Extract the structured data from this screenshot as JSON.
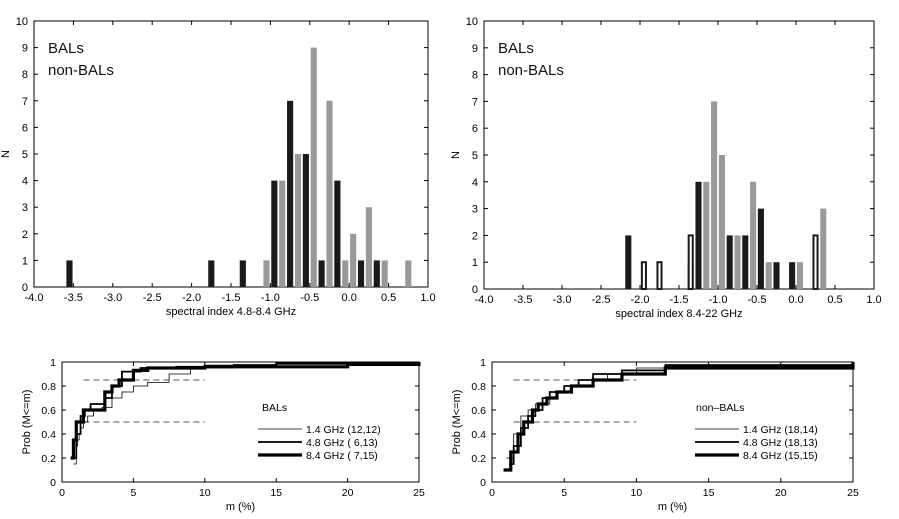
{
  "chart_data": [
    {
      "type": "bar",
      "xlabel": "spectral index 4.8-8.4 GHz",
      "ylabel": "N",
      "xlim": [
        -4.0,
        1.0
      ],
      "ylim": [
        0,
        10
      ],
      "xticks": [
        "-4.0",
        "-3.5",
        "-3.0",
        "-2.5",
        "-2.0",
        "-1.5",
        "-1.0",
        "-0.5",
        "0.0",
        "0.5",
        "1.0"
      ],
      "yticks": [
        "0",
        "1",
        "2",
        "3",
        "4",
        "5",
        "6",
        "7",
        "8",
        "9",
        "10"
      ],
      "grid": false,
      "legend_position": "top-left",
      "series": [
        {
          "name": "BALs",
          "color": "#1a1a1a",
          "x": [
            -3.55,
            -1.75,
            -1.35,
            -0.95,
            -0.75,
            -0.55,
            -0.35,
            -0.15,
            0.15,
            0.35
          ],
          "values": [
            1,
            1,
            1,
            4,
            7,
            5,
            1,
            4,
            1,
            1
          ]
        },
        {
          "name": "non-BALs",
          "color": "#999999",
          "x": [
            -1.05,
            -0.85,
            -0.65,
            -0.45,
            -0.25,
            -0.05,
            0.05,
            0.25,
            0.45,
            0.75
          ],
          "values": [
            1,
            4,
            5,
            9,
            7,
            1,
            2,
            3,
            1,
            1
          ]
        }
      ]
    },
    {
      "type": "bar",
      "xlabel": "spectral index 8.4-22 GHz",
      "ylabel": "N",
      "xlim": [
        -4.0,
        1.0
      ],
      "ylim": [
        0,
        10
      ],
      "xticks": [
        "-4.0",
        "-3.5",
        "-3.0",
        "-2.5",
        "-2.0",
        "-1.5",
        "-1.0",
        "-0.5",
        "0.0",
        "0.5",
        "1.0"
      ],
      "yticks": [
        "0",
        "1",
        "2",
        "3",
        "4",
        "5",
        "6",
        "7",
        "8",
        "9",
        "10"
      ],
      "grid": false,
      "legend_position": "top-left",
      "series": [
        {
          "name": "BALs",
          "color": "#1a1a1a",
          "x": [
            -2.15,
            -1.25,
            -0.85,
            -0.65,
            -0.45,
            -0.25,
            -0.05
          ],
          "values": [
            2,
            4,
            2,
            2,
            3,
            1,
            1
          ]
        },
        {
          "name": "non-BALs",
          "color": "#999999",
          "x": [
            -1.35,
            -1.15,
            -1.05,
            -0.95,
            -0.75,
            -0.55,
            -0.35,
            0.05,
            0.35
          ],
          "values": [
            1,
            4,
            7,
            5,
            2,
            4,
            1,
            1,
            3
          ]
        },
        {
          "name": "",
          "color": "#1a1a1a",
          "style": "outline",
          "x": [
            -1.95,
            -1.75,
            -1.35,
            0.25
          ],
          "values": [
            1,
            1,
            2,
            2
          ]
        }
      ]
    },
    {
      "type": "line",
      "xlabel": "m (%)",
      "ylabel": "Prob (M<=m)",
      "xlim": [
        0,
        25
      ],
      "ylim": [
        0,
        1
      ],
      "xticks": [
        "0",
        "5",
        "10",
        "15",
        "20",
        "25"
      ],
      "yticks": [
        "0",
        "0.2",
        "0.4",
        "0.6",
        "0.8",
        "1"
      ],
      "grid": false,
      "legend_title": "BALs",
      "legend_position": "right",
      "reference_lines": [
        {
          "y": 0.85,
          "x_range": [
            1.5,
            10
          ],
          "style": "dashed"
        },
        {
          "y": 0.5,
          "x_range": [
            1.5,
            10
          ],
          "style": "dashed"
        }
      ],
      "series": [
        {
          "name": "1.4 GHz (12,12)",
          "stroke_width": 0.8,
          "x": [
            0.8,
            1.0,
            1.1,
            1.2,
            1.3,
            1.5,
            1.8,
            2.2,
            2.8,
            3.5,
            4.2,
            5.0,
            6.0,
            7.5,
            9.0,
            12.0,
            25.0
          ],
          "y": [
            0.15,
            0.3,
            0.35,
            0.4,
            0.45,
            0.5,
            0.55,
            0.6,
            0.62,
            0.7,
            0.75,
            0.8,
            0.83,
            0.9,
            0.95,
            0.98,
            1.0
          ]
        },
        {
          "name": "4.8 GHz ( 6,13)",
          "stroke_width": 1.8,
          "x": [
            0.8,
            1.0,
            1.3,
            1.6,
            2.0,
            3.0,
            3.5,
            4.2,
            5.5,
            8.0,
            10.0,
            15.0,
            25.0
          ],
          "y": [
            0.2,
            0.4,
            0.55,
            0.6,
            0.65,
            0.7,
            0.8,
            0.92,
            0.95,
            0.96,
            0.97,
            0.99,
            1.0
          ]
        },
        {
          "name": "8.4 GHz ( 7,15)",
          "stroke_width": 3.2,
          "x": [
            0.6,
            0.8,
            1.0,
            1.5,
            2.5,
            3.0,
            3.5,
            4.0,
            5.0,
            6.0,
            10.0,
            15.0,
            18.0,
            20.0,
            25.0
          ],
          "y": [
            0.2,
            0.35,
            0.5,
            0.6,
            0.6,
            0.75,
            0.8,
            0.85,
            0.93,
            0.95,
            0.96,
            0.96,
            0.96,
            0.98,
            1.0
          ]
        }
      ]
    },
    {
      "type": "line",
      "xlabel": "m (%)",
      "ylabel": "Prob (M<=m)",
      "xlim": [
        0,
        25
      ],
      "ylim": [
        0,
        1
      ],
      "xticks": [
        "0",
        "5",
        "10",
        "15",
        "20",
        "25"
      ],
      "yticks": [
        "0",
        "0.2",
        "0.4",
        "0.6",
        "0.8",
        "1"
      ],
      "grid": false,
      "legend_title": "non–BALs",
      "legend_position": "right",
      "reference_lines": [
        {
          "y": 0.85,
          "x_range": [
            1.5,
            10
          ],
          "style": "dashed"
        },
        {
          "y": 0.5,
          "x_range": [
            1.5,
            10
          ],
          "style": "dashed"
        }
      ],
      "series": [
        {
          "name": "1.4 GHz (18,14)",
          "stroke_width": 0.8,
          "x": [
            1.0,
            1.5,
            2.0,
            2.5,
            3.0,
            4.0,
            5.0,
            6.0,
            8.0,
            10.0,
            12.0,
            25.0
          ],
          "y": [
            0.2,
            0.4,
            0.55,
            0.6,
            0.65,
            0.75,
            0.8,
            0.85,
            0.9,
            0.95,
            0.98,
            1.0
          ]
        },
        {
          "name": "4.8 GHz (18,13)",
          "stroke_width": 1.8,
          "x": [
            1.2,
            1.5,
            2.0,
            2.5,
            3.0,
            3.5,
            4.0,
            5.0,
            6.0,
            7.0,
            9.0,
            12.0,
            25.0
          ],
          "y": [
            0.15,
            0.3,
            0.45,
            0.55,
            0.6,
            0.7,
            0.75,
            0.8,
            0.85,
            0.9,
            0.93,
            0.97,
            1.0
          ]
        },
        {
          "name": "8.4 GHz (15,15)",
          "stroke_width": 3.2,
          "x": [
            0.8,
            1.3,
            1.8,
            2.2,
            2.8,
            3.2,
            3.8,
            4.5,
            5.5,
            7.0,
            9.0,
            12.0,
            25.0
          ],
          "y": [
            0.1,
            0.25,
            0.4,
            0.5,
            0.6,
            0.65,
            0.7,
            0.75,
            0.8,
            0.85,
            0.9,
            0.95,
            1.0
          ]
        }
      ]
    }
  ]
}
